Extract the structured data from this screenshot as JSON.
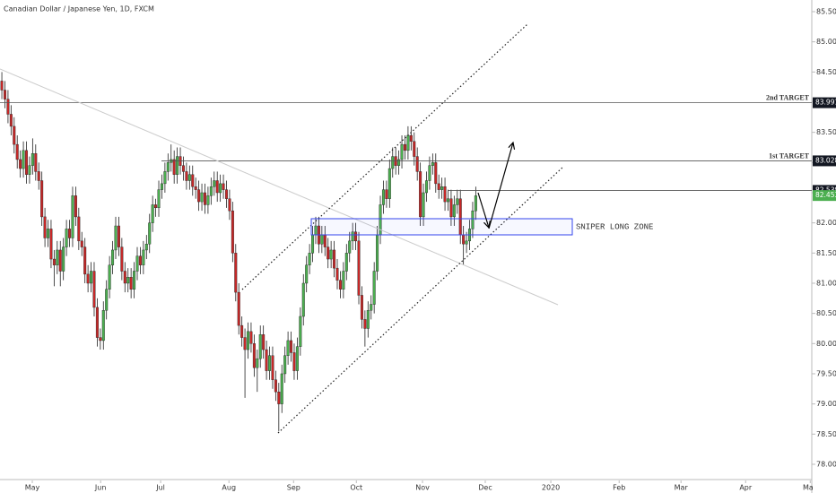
{
  "chart_data": {
    "type": "candlestick",
    "title": "Canadian Dollar / Japanese Yen, 1D, FXCM",
    "up_color": "#4caf50",
    "down_color": "#c62828",
    "open": [
      84.35,
      84.2,
      84.05,
      83.8,
      83.6,
      83.3,
      83.05,
      82.9,
      83.2,
      82.8,
      82.95,
      83.15,
      82.85,
      82.7,
      82.1,
      81.75,
      81.9,
      81.4,
      81.3,
      81.55,
      81.2,
      81.6,
      81.9,
      81.75,
      82.45,
      82.1,
      81.7,
      81.6,
      81.15,
      81.0,
      81.2,
      80.6,
      80.1,
      80.05,
      80.55,
      80.9,
      81.3,
      81.55,
      81.95,
      81.6,
      81.2,
      81.0,
      81.1,
      80.9,
      81.2,
      81.45,
      81.3,
      81.55,
      81.65,
      82.0,
      82.3,
      82.25,
      82.55,
      82.65,
      82.85,
      83.0,
      83.05,
      82.8,
      83.1,
      82.95,
      82.85,
      82.7,
      82.8,
      82.6,
      82.55,
      82.35,
      82.5,
      82.3,
      82.45,
      82.6,
      82.7,
      82.5,
      82.65,
      82.55,
      82.4,
      82.2,
      81.5,
      80.85,
      80.3,
      80.1,
      79.9,
      80.2,
      80.0,
      79.6,
      79.75,
      80.15,
      79.9,
      79.55,
      79.8,
      79.4,
      79.2,
      79.0,
      79.5,
      79.8,
      80.05,
      79.85,
      79.55,
      79.95,
      80.45,
      81.0,
      81.3,
      81.5,
      81.8,
      81.95,
      81.65,
      81.8,
      81.6,
      81.4,
      81.55,
      81.25,
      81.05,
      80.9,
      81.2,
      81.5,
      81.7,
      81.85,
      81.7,
      80.8,
      80.4,
      80.25,
      80.55,
      80.65,
      81.2,
      81.8,
      82.3,
      82.55,
      82.4,
      82.9,
      83.1,
      82.95,
      83.05,
      83.3,
      83.2,
      83.45,
      83.35,
      83.1,
      82.85,
      82.1,
      82.5,
      82.7,
      82.95,
      83.0,
      82.65,
      82.55,
      82.6,
      82.35,
      82.4,
      82.1,
      82.3,
      82.4,
      81.8,
      81.65,
      81.7,
      81.9,
      82.2
    ],
    "high": [
      84.5,
      84.35,
      84.2,
      83.95,
      83.75,
      83.45,
      83.2,
      83.35,
      83.35,
      83.1,
      83.4,
      83.3,
      83.0,
      82.85,
      82.25,
      82.05,
      82.05,
      81.55,
      81.7,
      81.7,
      81.75,
      82.05,
      82.05,
      82.6,
      82.6,
      82.25,
      81.85,
      81.75,
      81.3,
      81.35,
      81.35,
      80.75,
      80.25,
      80.7,
      81.05,
      81.45,
      81.7,
      82.1,
      82.1,
      81.75,
      81.35,
      81.25,
      81.25,
      81.35,
      81.6,
      81.6,
      81.7,
      81.8,
      82.15,
      82.45,
      82.4,
      82.7,
      82.8,
      83.0,
      83.15,
      83.3,
      83.2,
      83.25,
      83.25,
      83.1,
      83.0,
      82.95,
      82.95,
      82.75,
      82.7,
      82.65,
      82.65,
      82.6,
      82.75,
      82.85,
      82.85,
      82.8,
      82.8,
      82.7,
      82.55,
      82.35,
      81.65,
      81.0,
      80.45,
      80.25,
      80.35,
      80.35,
      80.15,
      79.9,
      80.3,
      80.3,
      80.05,
      79.95,
      79.95,
      79.55,
      79.35,
      79.65,
      79.95,
      80.2,
      80.2,
      80.0,
      80.1,
      80.6,
      81.15,
      81.45,
      81.65,
      81.95,
      82.1,
      82.1,
      81.95,
      81.95,
      81.75,
      81.7,
      81.7,
      81.4,
      81.2,
      81.35,
      81.65,
      81.85,
      82.0,
      82.0,
      81.85,
      80.95,
      80.55,
      80.7,
      80.8,
      81.35,
      81.95,
      82.45,
      82.7,
      82.7,
      83.05,
      83.25,
      83.25,
      83.2,
      83.45,
      83.45,
      83.6,
      83.6,
      83.5,
      83.25,
      83.0,
      82.65,
      82.85,
      83.1,
      83.15,
      83.15,
      82.8,
      82.75,
      82.75,
      82.55,
      82.55,
      82.45,
      82.55,
      82.55,
      81.95,
      81.85,
      82.05,
      82.35,
      82.6
    ],
    "low": [
      84.05,
      83.9,
      83.65,
      83.45,
      83.15,
      82.9,
      82.75,
      82.75,
      82.65,
      82.65,
      82.8,
      82.7,
      82.55,
      81.95,
      81.6,
      81.6,
      81.25,
      80.95,
      81.15,
      80.95,
      81.05,
      81.45,
      81.6,
      81.6,
      81.95,
      81.55,
      81.45,
      81.0,
      80.85,
      80.85,
      80.45,
      79.95,
      79.9,
      79.9,
      80.4,
      80.75,
      81.15,
      81.4,
      81.45,
      81.05,
      80.85,
      80.85,
      80.75,
      80.75,
      81.05,
      81.15,
      81.15,
      81.4,
      81.5,
      81.85,
      82.1,
      82.1,
      82.4,
      82.5,
      82.7,
      82.85,
      82.65,
      82.65,
      82.8,
      82.7,
      82.55,
      82.55,
      82.45,
      82.4,
      82.2,
      82.2,
      82.15,
      82.15,
      82.3,
      82.45,
      82.35,
      82.35,
      82.4,
      82.25,
      82.05,
      81.35,
      80.7,
      80.15,
      79.95,
      79.1,
      79.75,
      79.85,
      79.45,
      79.2,
      79.6,
      79.75,
      79.4,
      79.4,
      79.25,
      79.05,
      78.55,
      78.85,
      79.35,
      79.65,
      79.7,
      79.4,
      79.4,
      79.8,
      80.3,
      80.85,
      81.15,
      81.35,
      81.65,
      81.5,
      81.5,
      81.45,
      81.25,
      81.25,
      81.1,
      80.9,
      80.75,
      80.75,
      81.05,
      81.35,
      81.55,
      81.55,
      80.65,
      80.25,
      79.95,
      80.1,
      80.4,
      80.5,
      81.05,
      81.65,
      82.15,
      82.25,
      82.25,
      82.75,
      82.8,
      82.8,
      82.9,
      83.05,
      83.05,
      83.2,
      82.95,
      82.7,
      81.95,
      81.95,
      82.35,
      82.55,
      82.8,
      82.5,
      82.4,
      82.4,
      82.2,
      82.2,
      81.95,
      81.95,
      82.15,
      81.65,
      81.3,
      81.5,
      81.55,
      81.75,
      82.05
    ],
    "close": [
      84.2,
      84.05,
      83.8,
      83.6,
      83.3,
      83.05,
      82.9,
      83.2,
      82.8,
      82.95,
      83.15,
      82.85,
      82.7,
      82.1,
      81.75,
      81.9,
      81.4,
      81.3,
      81.55,
      81.2,
      81.6,
      81.9,
      81.75,
      82.45,
      82.1,
      81.7,
      81.6,
      81.15,
      81.0,
      81.2,
      80.6,
      80.1,
      80.05,
      80.55,
      80.9,
      81.3,
      81.55,
      81.95,
      81.6,
      81.2,
      81.0,
      81.1,
      80.9,
      81.2,
      81.45,
      81.3,
      81.55,
      81.65,
      82.0,
      82.3,
      82.25,
      82.55,
      82.65,
      82.85,
      83.0,
      83.05,
      82.8,
      83.1,
      82.95,
      82.85,
      82.7,
      82.8,
      82.6,
      82.55,
      82.35,
      82.5,
      82.3,
      82.45,
      82.6,
      82.7,
      82.5,
      82.65,
      82.55,
      82.4,
      82.2,
      81.5,
      80.85,
      80.3,
      80.1,
      79.9,
      80.2,
      80.0,
      79.6,
      79.75,
      80.15,
      79.9,
      79.55,
      79.8,
      79.4,
      79.2,
      79.0,
      79.5,
      79.8,
      80.05,
      79.85,
      79.55,
      79.95,
      80.45,
      81.0,
      81.3,
      81.5,
      81.8,
      81.95,
      81.65,
      81.8,
      81.6,
      81.4,
      81.55,
      81.25,
      81.05,
      80.9,
      81.2,
      81.5,
      81.7,
      81.85,
      81.7,
      80.8,
      80.4,
      80.25,
      80.55,
      80.65,
      81.2,
      81.8,
      82.3,
      82.55,
      82.4,
      82.9,
      83.1,
      82.95,
      83.05,
      83.3,
      83.2,
      83.45,
      83.35,
      83.1,
      82.85,
      82.1,
      82.5,
      82.7,
      82.95,
      83.0,
      82.65,
      82.55,
      82.6,
      82.35,
      82.4,
      82.1,
      82.3,
      82.4,
      81.8,
      81.65,
      81.7,
      81.9,
      82.2,
      82.45
    ],
    "xlim": [
      -0.6,
      263.2
    ],
    "xticks": [
      {
        "value": 9.9,
        "label": "May"
      },
      {
        "value": 32.1,
        "label": "Jun"
      },
      {
        "value": 51.6,
        "label": "Jul"
      },
      {
        "value": 73.8,
        "label": "Aug"
      },
      {
        "value": 94.8,
        "label": "Sep"
      },
      {
        "value": 115.2,
        "label": "Oct"
      },
      {
        "value": 136.7,
        "label": "Nov"
      },
      {
        "value": 157.1,
        "label": "Dec"
      },
      {
        "value": 178.4,
        "label": "2020"
      },
      {
        "value": 200.6,
        "label": "Feb"
      },
      {
        "value": 220.7,
        "label": "Mar"
      },
      {
        "value": 241.7,
        "label": "Apr"
      },
      {
        "value": 262.7,
        "label": "May"
      }
    ],
    "ylim": [
      77.747,
      85.693
    ],
    "yticks": [
      {
        "value": 78,
        "label": "78.000"
      },
      {
        "value": 78.5,
        "label": "78.500"
      },
      {
        "value": 79,
        "label": "79.000"
      },
      {
        "value": 79.5,
        "label": "79.500"
      },
      {
        "value": 80,
        "label": "80.000"
      },
      {
        "value": 80.5,
        "label": "80.500"
      },
      {
        "value": 81,
        "label": "81.000"
      },
      {
        "value": 81.5,
        "label": "81.500"
      },
      {
        "value": 82,
        "label": "82.000"
      },
      {
        "value": 82.5,
        "label": "82.500"
      },
      {
        "value": 83,
        "label": "83.000"
      },
      {
        "value": 83.5,
        "label": "83.500"
      },
      {
        "value": 84,
        "label": "84.000"
      },
      {
        "value": 84.5,
        "label": "84.500"
      },
      {
        "value": 85,
        "label": "85.000"
      },
      {
        "value": 85.5,
        "label": "85.500"
      }
    ],
    "levels": [
      {
        "label": "2nd TARGET",
        "value": 83.991
      },
      {
        "label": "1st TARGET",
        "value": 83.028
      },
      {
        "value": 82.538
      }
    ],
    "last_price": 82.453,
    "zone_label": "SNIPER LONG ZONE"
  }
}
